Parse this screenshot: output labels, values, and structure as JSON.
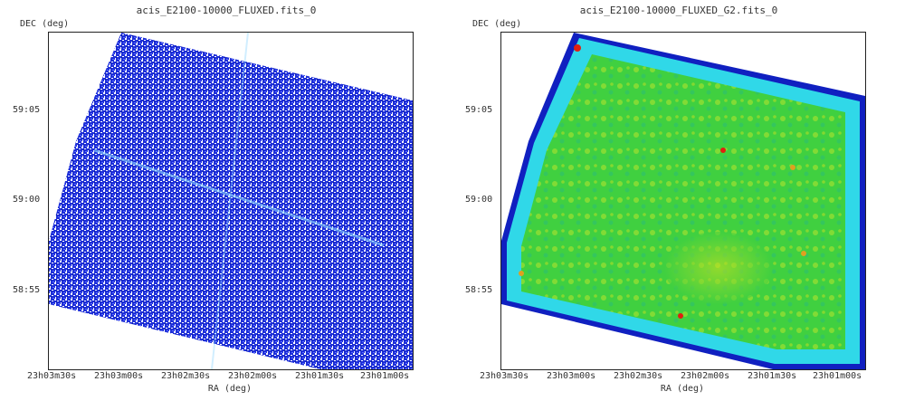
{
  "panels": [
    {
      "title": "acis_E2100-10000_FLUXED.fits_0",
      "y_axis_label": "DEC (deg)",
      "x_axis_label": "RA (deg)",
      "y_ticks": [
        "59:05",
        "59:00",
        "58:55"
      ],
      "x_ticks": [
        "23h03m30s",
        "23h03m00s",
        "23h02m30s",
        "23h02m00s",
        "23h01m30s",
        "23h01m00s"
      ],
      "colormap": "raw-counts-blue",
      "colors": {
        "background": "#ffffff",
        "data": "#1e2fd8",
        "hot": "#00c8ff"
      }
    },
    {
      "title": "acis_E2100-10000_FLUXED_G2.fits_0",
      "y_axis_label": "DEC (deg)",
      "x_axis_label": "RA (deg)",
      "y_ticks": [
        "59:05",
        "59:00",
        "58:55"
      ],
      "x_ticks": [
        "23h03m30s",
        "23h03m00s",
        "23h02m30s",
        "23h02m00s",
        "23h01m30s",
        "23h01m00s"
      ],
      "colormap": "smoothed-jet",
      "colors": {
        "edge": "#1020c0",
        "low": "#30d8e8",
        "mid": "#40d040",
        "high": "#c8e020",
        "source": "#e02010"
      }
    }
  ]
}
